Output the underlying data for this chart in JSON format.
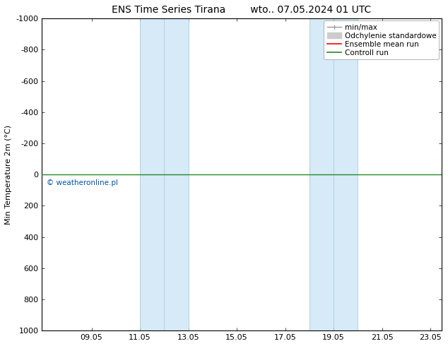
{
  "title_left": "ENS Time Series Tirana",
  "title_right": "wto.. 07.05.2024 01 UTC",
  "ylabel": "Min Temperature 2m (°C)",
  "ylim": [
    -1000,
    1000
  ],
  "yticks": [
    -1000,
    -800,
    -600,
    -400,
    -200,
    0,
    200,
    400,
    600,
    800,
    1000
  ],
  "xlim": [
    7.0,
    23.5
  ],
  "xticks": [
    9.05,
    11.05,
    13.05,
    15.05,
    17.05,
    19.05,
    21.05,
    23.05
  ],
  "xticklabels": [
    "09.05",
    "11.05",
    "13.05",
    "15.05",
    "17.05",
    "19.05",
    "21.05",
    "23.05"
  ],
  "blue_bands": [
    [
      11.05,
      12.05
    ],
    [
      12.05,
      13.05
    ],
    [
      18.05,
      19.05
    ],
    [
      19.05,
      20.05
    ]
  ],
  "blue_band_color": "#d6eaf8",
  "divider_color": "#aaccdd",
  "control_run_y": 0,
  "control_run_color": "#228B22",
  "ensemble_mean_color": "#FF0000",
  "minmax_color": "#999999",
  "std_color": "#cccccc",
  "legend_labels": [
    "min/max",
    "Odchylenie standardowe",
    "Ensemble mean run",
    "Controll run"
  ],
  "copyright_text": "© weatheronline.pl",
  "copyright_color": "#0055AA",
  "title_fontsize": 10,
  "axis_fontsize": 8,
  "tick_fontsize": 8,
  "legend_fontsize": 7.5
}
